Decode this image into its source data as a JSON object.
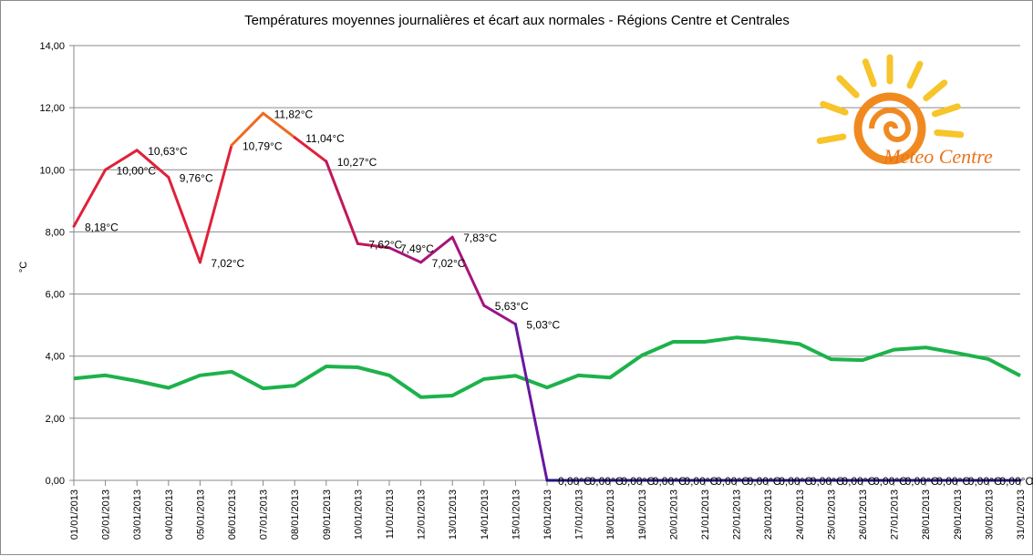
{
  "chart_data": {
    "type": "line",
    "title": "Températures moyennes journalières et écart aux normales - Régions Centre et Centrales",
    "ylabel": "°C",
    "xlabel": "",
    "ylim": [
      0,
      14
    ],
    "yticks": [
      "0,00",
      "2,00",
      "4,00",
      "6,00",
      "8,00",
      "10,00",
      "12,00",
      "14,00"
    ],
    "categories": [
      "01/01/2013",
      "02/01/2013",
      "03/01/2013",
      "04/01/2013",
      "05/01/2013",
      "06/01/2013",
      "07/01/2013",
      "08/01/2013",
      "09/01/2013",
      "10/01/2013",
      "11/01/2013",
      "12/01/2013",
      "13/01/2013",
      "14/01/2013",
      "15/01/2013",
      "16/01/2013",
      "17/01/2013",
      "18/01/2013",
      "19/01/2013",
      "20/01/2013",
      "21/01/2013",
      "22/01/2013",
      "23/01/2013",
      "24/01/2013",
      "25/01/2013",
      "26/01/2013",
      "27/01/2013",
      "28/01/2013",
      "29/01/2013",
      "30/01/2013",
      "31/01/2013"
    ],
    "grid": true,
    "series": [
      {
        "values": [
          8.18,
          10.0,
          10.63,
          9.76,
          7.02,
          10.79,
          11.82,
          11.04,
          10.27,
          7.62,
          7.49,
          7.02,
          7.83,
          5.63,
          5.03,
          0,
          0,
          0,
          0,
          0,
          0,
          0,
          0,
          0,
          0,
          0,
          0,
          0,
          0,
          0,
          0
        ],
        "labels": [
          "8,18°C",
          "10,00°C",
          "10,63°C",
          "9,76°C",
          "7,02°C",
          "10,79°C",
          "11,82°C",
          "11,04°C",
          "10,27°C",
          "7,62°C",
          "7,49°C",
          "7,02°C",
          "7,83°C",
          "5,63°C",
          "5,03°C",
          "0,00°C",
          "0,00°C",
          "0,00°C",
          "0,00°C",
          "0,00°C",
          "0,00°C",
          "0,00°C",
          "0,00°C",
          "0,00°C",
          "0,00°C",
          "0,00°C",
          "0,00°C",
          "0,00°C",
          "0,00°C",
          "0,00°C",
          "0,00°C"
        ],
        "segment_colors": [
          "#e0203a",
          "#e0203a",
          "#e0203a",
          "#e0203a",
          "#e0203a",
          "#ee6a1e",
          "#ee6a1e",
          "#e0203a",
          "#c0185a",
          "#c0185a",
          "#a8147a",
          "#a8147a",
          "#a8147a",
          "#9c1488",
          "#6a16a0",
          "#201880",
          "#201880",
          "#201880",
          "#201880",
          "#201880",
          "#201880",
          "#201880",
          "#201880",
          "#201880",
          "#201880",
          "#201880",
          "#201880",
          "#201880",
          "#201880",
          "#201880"
        ]
      },
      {
        "values": [
          3.28,
          3.38,
          3.2,
          2.98,
          3.38,
          3.5,
          2.96,
          3.05,
          3.67,
          3.64,
          3.38,
          2.68,
          2.73,
          3.26,
          3.37,
          2.99,
          3.38,
          3.31,
          4.02,
          4.46,
          4.46,
          4.6,
          4.51,
          4.39,
          3.9,
          3.87,
          4.21,
          4.28,
          4.1,
          3.9,
          3.37
        ],
        "color": "#1db24b"
      }
    ]
  },
  "logo": {
    "text": "Meteo Centre"
  }
}
